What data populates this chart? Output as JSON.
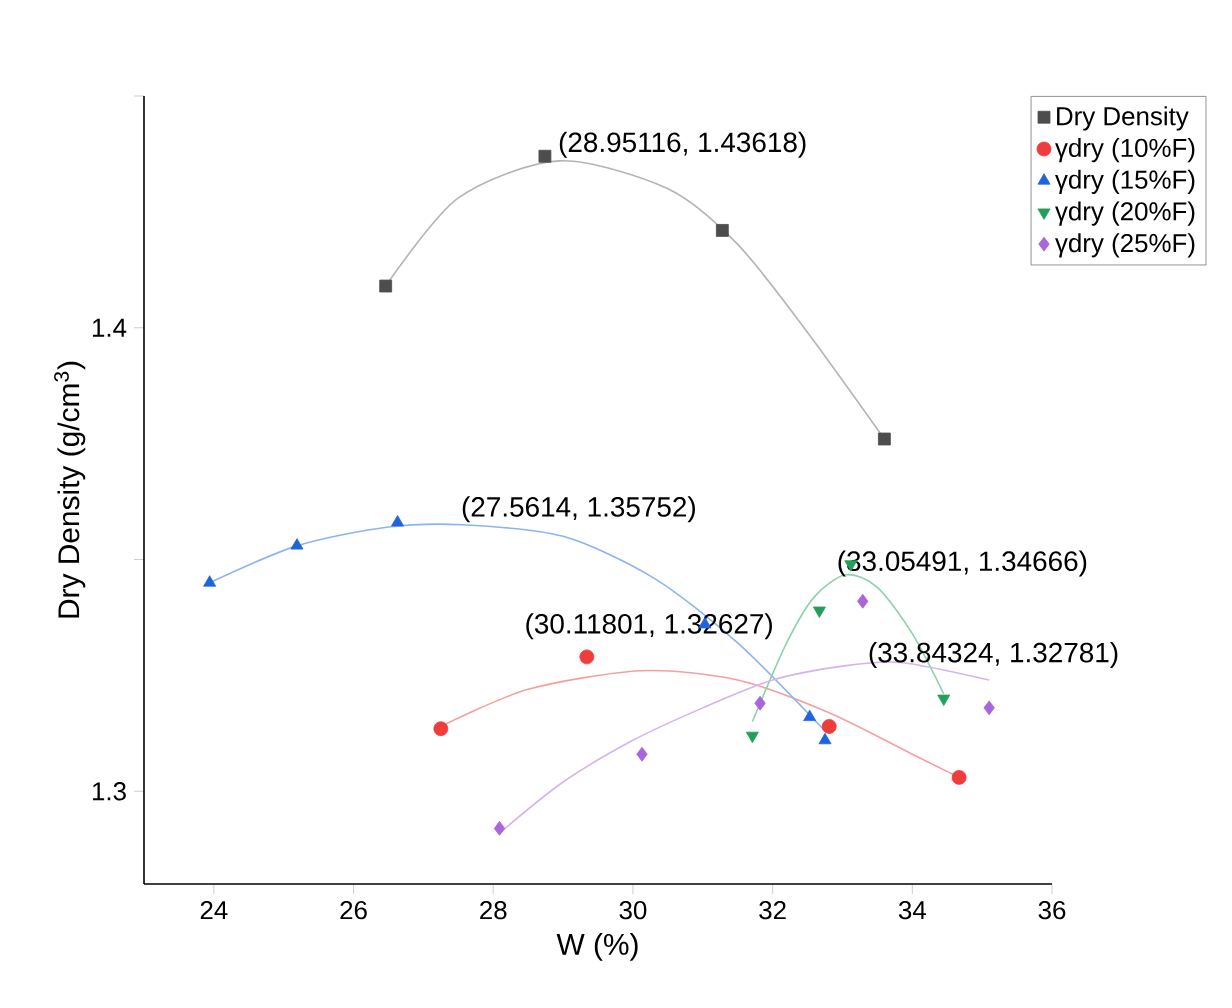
{
  "chart_data": {
    "type": "scatter",
    "xlabel": "W (%)",
    "ylabel": "Dry Density (g/cm$^{3}$)",
    "xlim": [
      23,
      36
    ],
    "xticks": [
      24,
      26,
      28,
      30,
      32,
      34,
      36
    ],
    "ylim": [
      1.28,
      1.45
    ],
    "yticks": [
      1.3,
      {
        "value": 1.35,
        "label": null
      },
      1.4,
      {
        "value": 1.45,
        "label": null
      }
    ],
    "legend": "top right",
    "grid": false,
    "series": [
      {
        "name": "Dry Density",
        "color": "#4d4d4d",
        "marker": "square",
        "x": [
          26.46,
          28.74,
          31.28,
          33.6
        ],
        "values": [
          1.409,
          1.437,
          1.421,
          1.376
        ]
      },
      {
        "name": "γdry (10%F)",
        "color": "#f03c3c",
        "marker": "circle",
        "x": [
          27.25,
          29.34,
          32.81,
          34.67
        ],
        "values": [
          1.3135,
          1.329,
          1.314,
          1.303
        ]
      },
      {
        "name": "γdry (15%F)",
        "color": "#1e64dc",
        "marker": "triangle",
        "x": [
          23.94,
          25.19,
          26.63,
          31.03,
          32.53,
          32.75
        ],
        "values": [
          1.345,
          1.353,
          1.358,
          1.336,
          1.316,
          1.311
        ]
      },
      {
        "name": "γdry (20%F)",
        "color": "#22a05a",
        "marker": "triangle down",
        "x": [
          31.71,
          32.67,
          33.12,
          34.45
        ],
        "values": [
          1.312,
          1.339,
          1.349,
          1.32
        ]
      },
      {
        "name": "γdry (25%F)",
        "color": "#a865dc",
        "marker": "diamond",
        "x": [
          28.09,
          30.13,
          31.82,
          33.29,
          35.1
        ],
        "values": [
          1.292,
          1.308,
          1.319,
          1.341,
          1.318
        ]
      },
      {
        "type": "line",
        "color": "#b4b4b4",
        "marker": "none",
        "x": [
          26.46,
          27.5,
          28.95,
          30.5,
          31.5,
          32.5,
          33.6
        ],
        "values": [
          1.409,
          1.428,
          1.436,
          1.43,
          1.418,
          1.399,
          1.376
        ]
      },
      {
        "type": "line",
        "color": "#f5a0a0",
        "marker": "none",
        "x": [
          27.25,
          28.5,
          30.12,
          31.5,
          32.8,
          34.0,
          34.67
        ],
        "values": [
          1.314,
          1.322,
          1.326,
          1.324,
          1.317,
          1.308,
          1.303
        ]
      },
      {
        "type": "line",
        "color": "#8cb4f0",
        "marker": "none",
        "x": [
          23.94,
          25.2,
          26.5,
          27.56,
          29.0,
          30.3,
          31.5,
          32.75
        ],
        "values": [
          1.345,
          1.353,
          1.357,
          1.3575,
          1.355,
          1.346,
          1.332,
          1.313
        ]
      },
      {
        "type": "line",
        "color": "#8cd2aa",
        "marker": "none",
        "x": [
          31.71,
          32.2,
          32.6,
          33.05,
          33.5,
          34.0,
          34.45
        ],
        "values": [
          1.315,
          1.332,
          1.342,
          1.3467,
          1.344,
          1.334,
          1.321
        ]
      },
      {
        "type": "line",
        "color": "#d2b4f0",
        "marker": "none",
        "x": [
          28.09,
          29.0,
          30.0,
          31.0,
          32.0,
          33.0,
          33.84,
          35.1
        ],
        "values": [
          1.291,
          1.302,
          1.311,
          1.318,
          1.324,
          1.327,
          1.3278,
          1.324
        ]
      }
    ],
    "annotations": [
      {
        "text": "(28.95116, 1.43618)",
        "x": 28.95116,
        "y": 1.43618
      },
      {
        "text": "(27.5614, 1.35752)",
        "x": 27.5614,
        "y": 1.35752
      },
      {
        "text": "(30.11801, 1.32627)",
        "x": 30.11801,
        "y": 1.32627
      },
      {
        "text": "(33.05491, 1.34666)",
        "x": 33.05491,
        "y": 1.34666
      },
      {
        "text": "(33.84324, 1.32781)",
        "x": 33.84324,
        "y": 1.32781
      }
    ]
  }
}
